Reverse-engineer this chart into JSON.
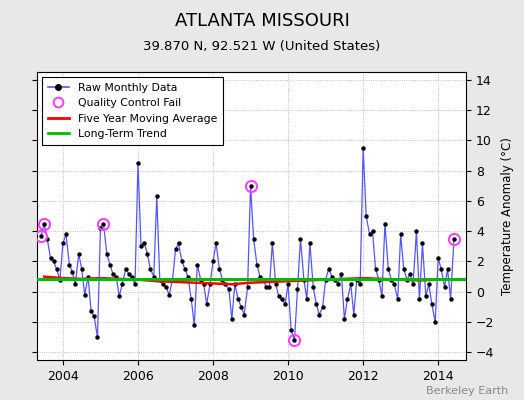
{
  "title": "ATLANTA MISSOURI",
  "subtitle": "39.870 N, 92.521 W (United States)",
  "ylabel_right": "Temperature Anomaly (°C)",
  "watermark": "Berkeley Earth",
  "ylim": [
    -4.5,
    14.5
  ],
  "yticks": [
    -4,
    -2,
    0,
    2,
    4,
    6,
    8,
    10,
    12,
    14
  ],
  "xlim_start": 2003.3,
  "xlim_end": 2014.75,
  "bg_color": "#e8e8e8",
  "plot_bg_color": "#ffffff",
  "raw_color": "#5555ff",
  "moving_avg_color": "#ff0000",
  "trend_color": "#00bb00",
  "qc_fail_color": "#ff44ff",
  "raw_data": [
    [
      2003.42,
      3.7
    ],
    [
      2003.5,
      4.5
    ],
    [
      2003.58,
      3.5
    ],
    [
      2003.67,
      2.2
    ],
    [
      2003.75,
      2.0
    ],
    [
      2003.83,
      1.5
    ],
    [
      2003.92,
      0.8
    ],
    [
      2004.0,
      3.2
    ],
    [
      2004.08,
      3.8
    ],
    [
      2004.17,
      1.8
    ],
    [
      2004.25,
      1.3
    ],
    [
      2004.33,
      0.5
    ],
    [
      2004.42,
      2.5
    ],
    [
      2004.5,
      1.5
    ],
    [
      2004.58,
      -0.2
    ],
    [
      2004.67,
      1.0
    ],
    [
      2004.75,
      -1.3
    ],
    [
      2004.83,
      -1.6
    ],
    [
      2004.92,
      -3.0
    ],
    [
      2005.0,
      4.2
    ],
    [
      2005.08,
      4.5
    ],
    [
      2005.17,
      2.5
    ],
    [
      2005.25,
      1.8
    ],
    [
      2005.33,
      1.2
    ],
    [
      2005.42,
      1.0
    ],
    [
      2005.5,
      -0.3
    ],
    [
      2005.58,
      0.5
    ],
    [
      2005.67,
      1.5
    ],
    [
      2005.75,
      1.2
    ],
    [
      2005.83,
      1.0
    ],
    [
      2005.92,
      0.5
    ],
    [
      2006.0,
      8.5
    ],
    [
      2006.08,
      3.0
    ],
    [
      2006.17,
      3.2
    ],
    [
      2006.25,
      2.5
    ],
    [
      2006.33,
      1.5
    ],
    [
      2006.42,
      1.0
    ],
    [
      2006.5,
      6.3
    ],
    [
      2006.58,
      0.8
    ],
    [
      2006.67,
      0.5
    ],
    [
      2006.75,
      0.3
    ],
    [
      2006.83,
      -0.2
    ],
    [
      2006.92,
      0.8
    ],
    [
      2007.0,
      2.8
    ],
    [
      2007.08,
      3.2
    ],
    [
      2007.17,
      2.0
    ],
    [
      2007.25,
      1.5
    ],
    [
      2007.33,
      1.0
    ],
    [
      2007.42,
      -0.5
    ],
    [
      2007.5,
      -2.2
    ],
    [
      2007.58,
      1.8
    ],
    [
      2007.67,
      0.8
    ],
    [
      2007.75,
      0.5
    ],
    [
      2007.83,
      -0.8
    ],
    [
      2007.92,
      0.5
    ],
    [
      2008.0,
      2.0
    ],
    [
      2008.08,
      3.2
    ],
    [
      2008.17,
      1.5
    ],
    [
      2008.25,
      0.8
    ],
    [
      2008.33,
      0.5
    ],
    [
      2008.42,
      0.2
    ],
    [
      2008.5,
      -1.8
    ],
    [
      2008.58,
      0.5
    ],
    [
      2008.67,
      -0.5
    ],
    [
      2008.75,
      -1.0
    ],
    [
      2008.83,
      -1.5
    ],
    [
      2008.92,
      0.3
    ],
    [
      2009.0,
      7.0
    ],
    [
      2009.08,
      3.5
    ],
    [
      2009.17,
      1.8
    ],
    [
      2009.25,
      1.0
    ],
    [
      2009.33,
      0.8
    ],
    [
      2009.42,
      0.3
    ],
    [
      2009.5,
      0.3
    ],
    [
      2009.58,
      3.2
    ],
    [
      2009.67,
      0.5
    ],
    [
      2009.75,
      -0.3
    ],
    [
      2009.83,
      -0.5
    ],
    [
      2009.92,
      -0.8
    ],
    [
      2010.0,
      0.5
    ],
    [
      2010.08,
      -2.5
    ],
    [
      2010.17,
      -3.2
    ],
    [
      2010.25,
      0.2
    ],
    [
      2010.33,
      3.5
    ],
    [
      2010.42,
      0.8
    ],
    [
      2010.5,
      -0.5
    ],
    [
      2010.58,
      3.2
    ],
    [
      2010.67,
      0.3
    ],
    [
      2010.75,
      -0.8
    ],
    [
      2010.83,
      -1.5
    ],
    [
      2010.92,
      -1.0
    ],
    [
      2011.0,
      0.8
    ],
    [
      2011.08,
      1.5
    ],
    [
      2011.17,
      1.0
    ],
    [
      2011.25,
      0.8
    ],
    [
      2011.33,
      0.5
    ],
    [
      2011.42,
      1.2
    ],
    [
      2011.5,
      -1.8
    ],
    [
      2011.58,
      -0.5
    ],
    [
      2011.67,
      0.5
    ],
    [
      2011.75,
      -1.5
    ],
    [
      2011.83,
      0.8
    ],
    [
      2011.92,
      0.5
    ],
    [
      2012.0,
      9.5
    ],
    [
      2012.08,
      5.0
    ],
    [
      2012.17,
      3.8
    ],
    [
      2012.25,
      4.0
    ],
    [
      2012.33,
      1.5
    ],
    [
      2012.42,
      0.8
    ],
    [
      2012.5,
      -0.3
    ],
    [
      2012.58,
      4.5
    ],
    [
      2012.67,
      1.5
    ],
    [
      2012.75,
      0.8
    ],
    [
      2012.83,
      0.5
    ],
    [
      2012.92,
      -0.5
    ],
    [
      2013.0,
      3.8
    ],
    [
      2013.08,
      1.5
    ],
    [
      2013.17,
      0.8
    ],
    [
      2013.25,
      1.2
    ],
    [
      2013.33,
      0.5
    ],
    [
      2013.42,
      4.0
    ],
    [
      2013.5,
      -0.5
    ],
    [
      2013.58,
      3.2
    ],
    [
      2013.67,
      -0.3
    ],
    [
      2013.75,
      0.5
    ],
    [
      2013.83,
      -0.8
    ],
    [
      2013.92,
      -2.0
    ],
    [
      2014.0,
      2.2
    ],
    [
      2014.08,
      1.5
    ],
    [
      2014.17,
      0.3
    ],
    [
      2014.25,
      1.5
    ],
    [
      2014.33,
      -0.5
    ],
    [
      2014.42,
      3.5
    ]
  ],
  "qc_fail_points": [
    [
      2003.42,
      3.7
    ],
    [
      2003.5,
      4.5
    ],
    [
      2005.08,
      4.5
    ],
    [
      2009.0,
      7.0
    ],
    [
      2010.17,
      -3.2
    ],
    [
      2014.42,
      3.5
    ]
  ],
  "moving_avg": [
    [
      2003.5,
      1.0
    ],
    [
      2004.0,
      0.9
    ],
    [
      2004.5,
      0.85
    ],
    [
      2005.0,
      0.9
    ],
    [
      2005.5,
      0.85
    ],
    [
      2006.0,
      0.8
    ],
    [
      2006.5,
      0.7
    ],
    [
      2007.0,
      0.65
    ],
    [
      2007.5,
      0.6
    ],
    [
      2008.0,
      0.55
    ],
    [
      2008.5,
      0.5
    ],
    [
      2009.0,
      0.6
    ],
    [
      2009.5,
      0.65
    ],
    [
      2010.0,
      0.7
    ],
    [
      2010.5,
      0.75
    ],
    [
      2011.0,
      0.8
    ],
    [
      2011.5,
      0.85
    ],
    [
      2012.0,
      0.9
    ],
    [
      2012.5,
      0.85
    ],
    [
      2013.0,
      0.8
    ],
    [
      2013.5,
      0.75
    ],
    [
      2014.0,
      0.8
    ]
  ],
  "trend_y": 0.82,
  "xticks": [
    2004,
    2006,
    2008,
    2010,
    2012,
    2014
  ]
}
